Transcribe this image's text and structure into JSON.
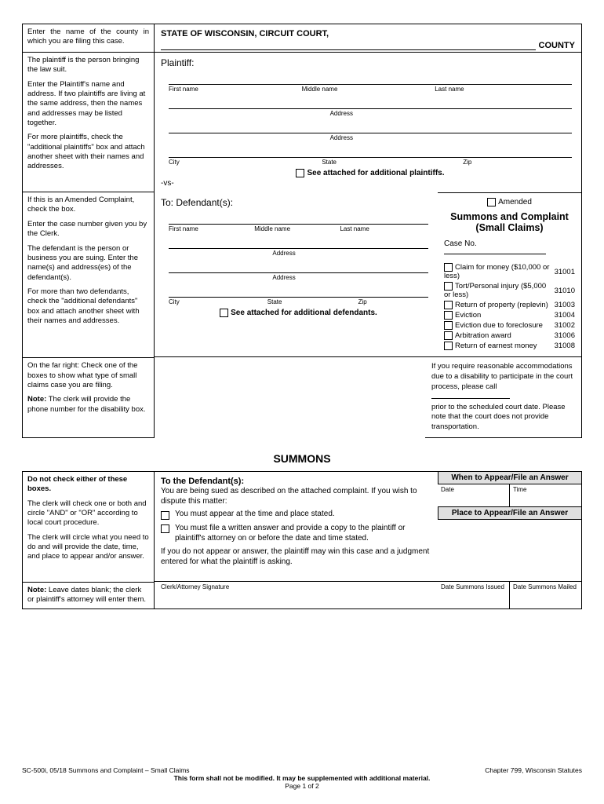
{
  "inst": {
    "county": "Enter the name of the county in which you are filing this case.",
    "plaintiff1": "The plaintiff is the person bringing the law suit.",
    "plaintiff2": "Enter the Plaintiff's name and address. If two plaintiffs are living at the same address, then the names and addresses may be listed together.",
    "plaintiff3": "For more plaintiffs, check the \"additional plaintiffs\" box and attach another sheet with their names and addresses.",
    "amended1": "If this is an Amended Complaint, check the box.",
    "amended2": "Enter the case number given you by the Clerk.",
    "defendant1": "The defendant is the person or business you are suing. Enter the name(s) and address(es) of the defendant(s).",
    "defendant2": "For more than two defendants, check the \"additional defendants\" box and attach another sheet with their names and addresses.",
    "claims1": "On the far right: Check one of the boxes to show what type of small claims case you are filing.",
    "claims2n": "Note:",
    "claims2": " The clerk will provide the phone number for the disability box.",
    "summons1": "Do not check either of these boxes.",
    "summons2": "The clerk will check one or both and circle \"AND\" or \"OR\" according to local court procedure.",
    "summons3": "The clerk will circle what you need to do and will provide the date, time, and place to appear and/or answer.",
    "summons4n": "Note:",
    "summons4": " Leave dates blank; the clerk or plaintiff's attorney will enter them."
  },
  "hdr": {
    "court": "STATE OF WISCONSIN, CIRCUIT COURT,",
    "county": "COUNTY"
  },
  "labels": {
    "plaintiff": "Plaintiff:",
    "first": "First name",
    "middle": "Middle name",
    "last": "Last name",
    "address": "Address",
    "city": "City",
    "state": "State",
    "zip": "Zip",
    "attachedP": "See attached for additional plaintiffs.",
    "vs": "-vs-",
    "to": "To: Defendant(s):",
    "attachedD": "See attached for additional defendants.",
    "amended": "Amended",
    "title": "Summons and Complaint",
    "subtitle": "(Small Claims)",
    "caseno": "Case No."
  },
  "claims": [
    {
      "t": "Claim for money ($10,000 or less)",
      "c": "31001"
    },
    {
      "t": "Tort/Personal injury ($5,000 or less)",
      "c": "31010"
    },
    {
      "t": "Return of property (replevin)",
      "c": "31003"
    },
    {
      "t": "Eviction",
      "c": "31004"
    },
    {
      "t": "Eviction due to foreclosure",
      "c": "31002"
    },
    {
      "t": "Arbitration award",
      "c": "31006"
    },
    {
      "t": "Return of earnest money",
      "c": "31008"
    }
  ],
  "acc": {
    "t1": "If you require reasonable accommodations due to a disability to participate in the court process, please call",
    "t2": "prior to the scheduled court date. Please note that the court does not provide transportation."
  },
  "summons": {
    "h": "SUMMONS",
    "to": "To the Defendant(s):",
    "intro": "You are being sued as described on the attached complaint. If you wish to dispute this matter:",
    "b1": "You must appear at the time and place stated.",
    "b2": "You must file a written answer and provide a copy to the plaintiff or plaintiff's attorney on or before the date and time stated.",
    "warn": "If you do not appear or answer, the plaintiff may win this case and a judgment entered for what the plaintiff is asking.",
    "sig": "Clerk/Attorney Signature",
    "when": "When to Appear/File an Answer",
    "date": "Date",
    "time": "Time",
    "place": "Place to Appear/File an Answer",
    "issued": "Date Summons Issued",
    "mailed": "Date Summons Mailed"
  },
  "footer": {
    "l": "SC-500i, 05/18 Summons and Complaint – Small Claims",
    "r": "Chapter 799, Wisconsin Statutes",
    "m": "This form shall not be modified.  It may be supplemented with additional material.",
    "p": "Page 1 of 2"
  }
}
